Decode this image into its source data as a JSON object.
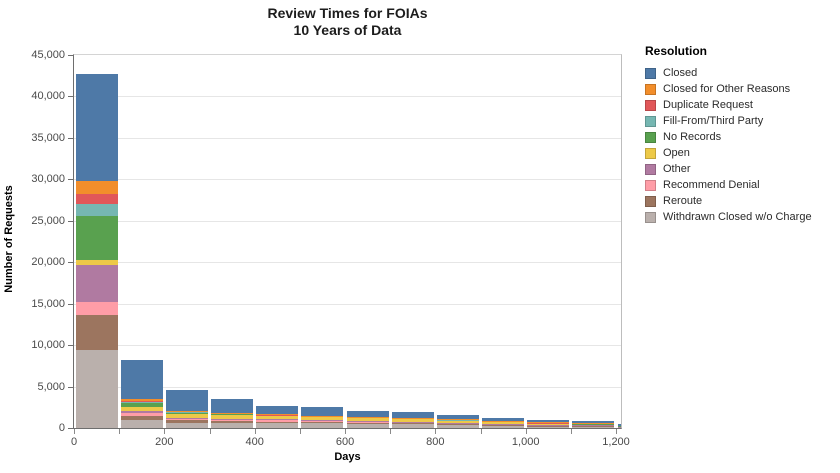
{
  "chart": {
    "title_line1": "Review Times for FOIAs",
    "title_line2": "10 Years of Data",
    "y_axis_title": "Number of Requests",
    "x_axis_title": "Days"
  },
  "legend": {
    "title": "Resolution",
    "items": [
      {
        "label": "Closed",
        "color": "#4e79a7"
      },
      {
        "label": "Closed for Other Reasons",
        "color": "#f28e2b"
      },
      {
        "label": "Duplicate Request",
        "color": "#e15759"
      },
      {
        "label": "Fill-From/Third Party",
        "color": "#76b7b2"
      },
      {
        "label": "No Records",
        "color": "#59a14f"
      },
      {
        "label": "Open",
        "color": "#edc948"
      },
      {
        "label": "Other",
        "color": "#b07aa1"
      },
      {
        "label": "Recommend Denial",
        "color": "#ff9da7"
      },
      {
        "label": "Reroute",
        "color": "#9c755f"
      },
      {
        "label": "Withdrawn Closed w/o Charge",
        "color": "#bab0ac"
      }
    ]
  },
  "chart_data": {
    "type": "bar",
    "stacked": true,
    "title": "Review Times for FOIAs",
    "subtitle": "10 Years of Data",
    "xlabel": "Days",
    "ylabel": "Number of Requests",
    "ylim": [
      0,
      45000
    ],
    "xlim": [
      0,
      1215
    ],
    "grid": "horizontal",
    "legend_title": "Resolution",
    "legend_position": "right",
    "y_tick_step": 5000,
    "y_tick_values": [
      0,
      5000,
      10000,
      15000,
      20000,
      25000,
      30000,
      35000,
      40000,
      45000
    ],
    "y_tick_labels": [
      "0",
      "5,000",
      "10,000",
      "15,000",
      "20,000",
      "25,000",
      "30,000",
      "35,000",
      "40,000",
      "45,000"
    ],
    "x_tick_days": [
      0,
      100,
      200,
      300,
      400,
      500,
      600,
      700,
      800,
      900,
      1000,
      1100,
      1200
    ],
    "x_tick_labels": [
      "0",
      "",
      "200",
      "",
      "400",
      "",
      "600",
      "",
      "800",
      "",
      "1,000",
      "",
      "1,200"
    ],
    "bin_width_days": 100,
    "bin_starts": [
      0,
      100,
      200,
      300,
      400,
      500,
      600,
      700,
      800,
      900,
      1000,
      1100,
      1200
    ],
    "bar_totals": [
      42750,
      8250,
      4600,
      3500,
      2700,
      2500,
      2100,
      1900,
      1600,
      1250,
      1000,
      850,
      480
    ],
    "stack_note": "first series renders at the top of each stack, last series at the bottom",
    "series": [
      {
        "name": "Closed",
        "color": "#4e79a7",
        "values": [
          13000,
          4800,
          2500,
          1650,
          1050,
          1000,
          750,
          650,
          550,
          420,
          330,
          300,
          200
        ]
      },
      {
        "name": "Closed for Other Reasons",
        "color": "#f28e2b",
        "values": [
          1500,
          200,
          60,
          50,
          40,
          35,
          30,
          25,
          20,
          15,
          10,
          10,
          5
        ]
      },
      {
        "name": "Duplicate Request",
        "color": "#e15759",
        "values": [
          1250,
          100,
          50,
          40,
          30,
          25,
          20,
          20,
          15,
          10,
          10,
          5,
          5
        ]
      },
      {
        "name": "Fill-From/Third Party",
        "color": "#76b7b2",
        "values": [
          1400,
          100,
          50,
          40,
          30,
          25,
          20,
          20,
          15,
          10,
          10,
          5,
          5
        ]
      },
      {
        "name": "No Records",
        "color": "#59a14f",
        "values": [
          5300,
          500,
          230,
          170,
          120,
          100,
          90,
          80,
          60,
          40,
          30,
          25,
          15
        ]
      },
      {
        "name": "Open",
        "color": "#edc948",
        "values": [
          600,
          500,
          450,
          420,
          400,
          380,
          350,
          330,
          300,
          250,
          220,
          180,
          100
        ]
      },
      {
        "name": "Other",
        "color": "#b07aa1",
        "values": [
          4450,
          250,
          120,
          100,
          80,
          70,
          60,
          50,
          40,
          30,
          25,
          20,
          10
        ]
      },
      {
        "name": "Recommend Denial",
        "color": "#ff9da7",
        "values": [
          1600,
          350,
          220,
          200,
          170,
          150,
          140,
          120,
          100,
          80,
          60,
          50,
          25
        ]
      },
      {
        "name": "Reroute",
        "color": "#9c755f",
        "values": [
          4250,
          500,
          280,
          230,
          180,
          160,
          140,
          120,
          100,
          80,
          60,
          50,
          25
        ]
      },
      {
        "name": "Withdrawn Closed w/o Charge",
        "color": "#bab0ac",
        "values": [
          9400,
          950,
          640,
          600,
          600,
          555,
          500,
          485,
          400,
          315,
          245,
          205,
          90
        ]
      }
    ]
  }
}
